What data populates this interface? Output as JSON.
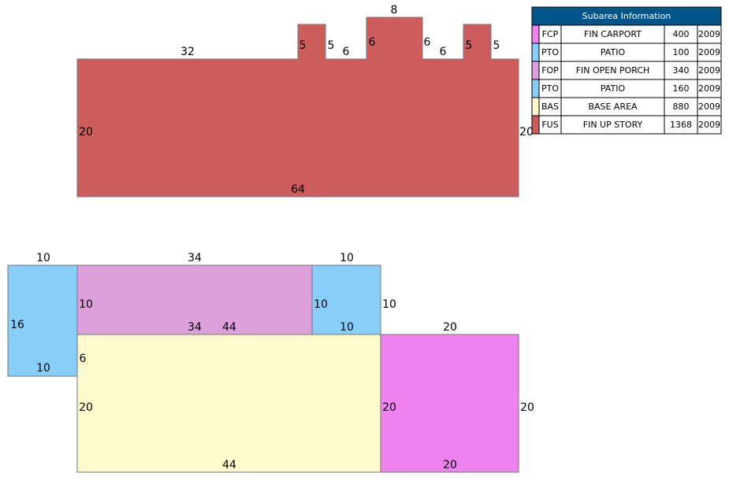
{
  "table": {
    "title": "Subarea Information",
    "rows": [
      {
        "color": "#ee82ee",
        "code": "FCP",
        "description": "FIN CARPORT",
        "area": 400,
        "year": 2009
      },
      {
        "color": "#87cefa",
        "code": "PTO",
        "description": "PATIO",
        "area": 100,
        "year": 2009
      },
      {
        "color": "#dda0dd",
        "code": "FOP",
        "description": "FIN OPEN PORCH",
        "area": 340,
        "year": 2009
      },
      {
        "color": "#87cefa",
        "code": "PTO",
        "description": "PATIO",
        "area": 160,
        "year": 2009
      },
      {
        "color": "#fffacd",
        "code": "BAS",
        "description": "BASE AREA",
        "area": 880,
        "year": 2009
      },
      {
        "color": "#cd5c5c",
        "code": "FUS",
        "description": "FIN UP STORY",
        "area": 1368,
        "year": 2009
      }
    ]
  },
  "sketch": {
    "upper_labels": [
      32,
      5,
      5,
      6,
      8,
      6,
      6,
      6,
      5,
      5,
      20,
      20,
      64
    ],
    "lower_labels": [
      10,
      34,
      10,
      16,
      10,
      10,
      10,
      10,
      34,
      44,
      10,
      20,
      6,
      20,
      20,
      20,
      44,
      20
    ]
  }
}
